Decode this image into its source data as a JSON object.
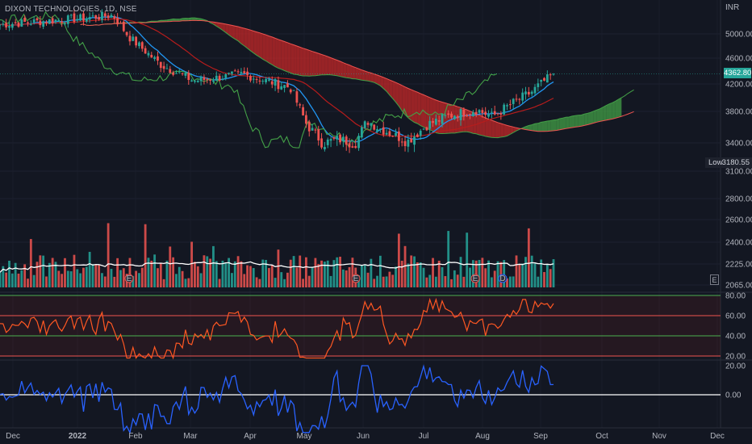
{
  "header": {
    "symbol_title": "DIXON TECHNOLOGIES, 1D, NSE"
  },
  "price_axis": {
    "currency": "INR",
    "ticks": [
      "5000.00",
      "4600.00",
      "4200.00",
      "3800.00",
      "3400.00",
      "3100.00",
      "2800.00",
      "2600.00",
      "2400.00",
      "2225.00",
      "2065.00"
    ]
  },
  "last_price": {
    "label": "4362.80"
  },
  "low_marker": {
    "label": "Low",
    "value": "3180.55"
  },
  "rsi_axis": {
    "ticks": [
      "80.00",
      "60.00",
      "40.00",
      "20.00"
    ]
  },
  "osc_axis": {
    "ticks": [
      "20.00",
      "0.00"
    ]
  },
  "time_axis": {
    "labels": [
      "Dec",
      "2022",
      "Feb",
      "Mar",
      "Apr",
      "May",
      "Jun",
      "Jul",
      "Aug",
      "Sep",
      "Oct",
      "Nov",
      "Dec"
    ]
  },
  "event_badge": {
    "label": "E"
  },
  "colors": {
    "up": "#26a69a",
    "down": "#ef5350",
    "cloud_bull": "#43a047",
    "cloud_bear": "#c62828",
    "background": "#131722"
  },
  "chart_data": [
    {
      "type": "candlestick",
      "title": "DIXON TECHNOLOGIES, 1D, NSE",
      "y_axis": "INR",
      "x_labels": [
        "Dec",
        "2022",
        "Feb",
        "Mar",
        "Apr",
        "May",
        "Jun",
        "Jul",
        "Aug",
        "Sep",
        "Oct",
        "Nov",
        "Dec"
      ],
      "close_path": [
        [
          "Dec",
          5150
        ],
        [
          "2022",
          5200
        ],
        [
          "Feb",
          4950
        ],
        [
          "Feb",
          4500
        ],
        [
          "Mar",
          4250
        ],
        [
          "Mar",
          4300
        ],
        [
          "Apr",
          4360
        ],
        [
          "Apr",
          4200
        ],
        [
          "May",
          4150
        ],
        [
          "May",
          3650
        ],
        [
          "May",
          3400
        ],
        [
          "Jun",
          3700
        ],
        [
          "Jun",
          3500
        ],
        [
          "Jul",
          3420
        ],
        [
          "Jul",
          3650
        ],
        [
          "Jul",
          3780
        ],
        [
          "Aug",
          3850
        ],
        [
          "Aug",
          3760
        ],
        [
          "Aug",
          3900
        ],
        [
          "Sep",
          4100
        ],
        [
          "Sep",
          4362.8
        ]
      ],
      "last": 4362.8,
      "low": 3180.55,
      "overlays": [
        "ichimoku cloud",
        "conversion line",
        "base line",
        "lagging span"
      ]
    },
    {
      "type": "bar",
      "title": "Volume",
      "overlays": [
        "volume moving average"
      ],
      "event_markers": [
        "E",
        "E",
        "E",
        "D"
      ]
    },
    {
      "type": "line",
      "title": "RSI",
      "bands": [
        80,
        60,
        40,
        20
      ],
      "ylim": [
        10,
        85
      ],
      "last": 72
    },
    {
      "type": "line",
      "title": "Oscillator",
      "ylim": [
        -28,
        22
      ],
      "zero_line": 0,
      "last": 7
    }
  ]
}
